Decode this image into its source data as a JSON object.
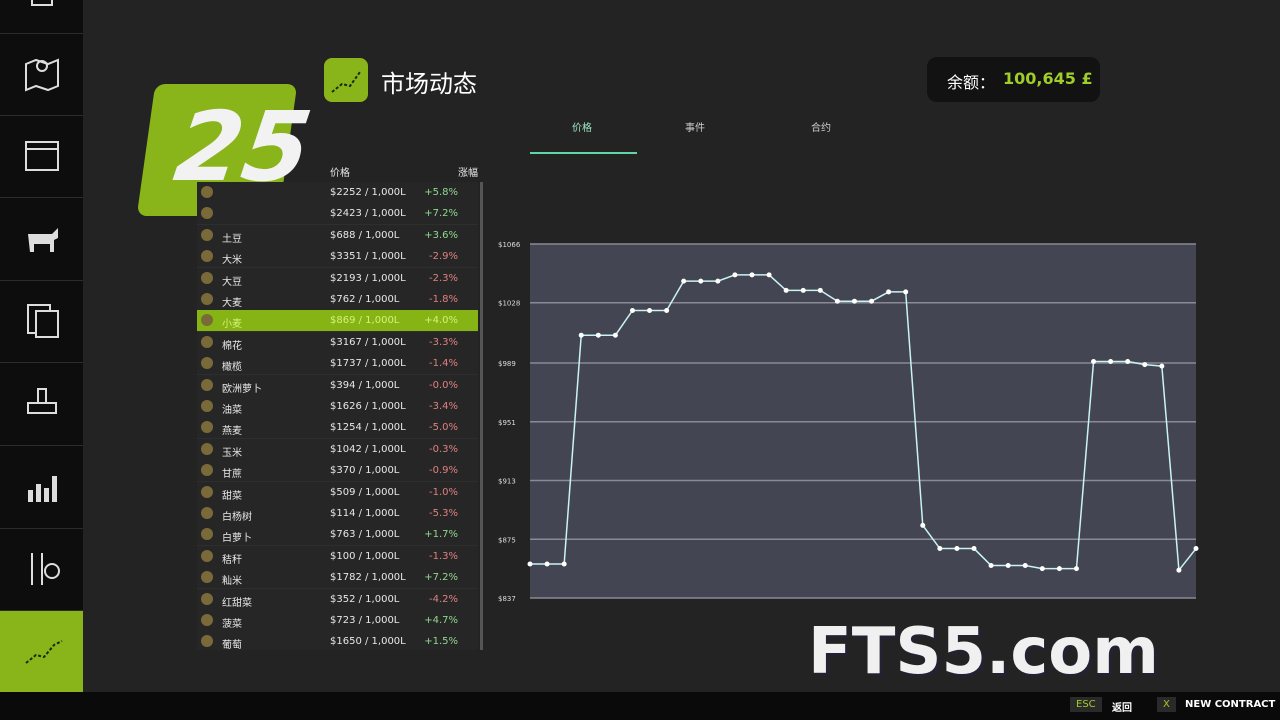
{
  "logo": "25",
  "header": {
    "title": "市场动态"
  },
  "balance": {
    "label": "余额：",
    "value": "100,645 £"
  },
  "tabs": [
    "价格",
    "事件",
    "合约"
  ],
  "list": {
    "headers": [
      "价格",
      "涨幅"
    ],
    "selected": 6,
    "rows": [
      {
        "name": null,
        "price": "$2252 / 1,000L",
        "change": "+5.8%"
      },
      {
        "name": null,
        "price": "$2423 / 1,000L",
        "change": "+7.2%"
      },
      {
        "name": "土豆",
        "price": "$688 / 1,000L",
        "change": "+3.6%"
      },
      {
        "name": "大米",
        "price": "$3351 / 1,000L",
        "change": "-2.9%"
      },
      {
        "name": "大豆",
        "price": "$2193 / 1,000L",
        "change": "-2.3%"
      },
      {
        "name": "大麦",
        "price": "$762 / 1,000L",
        "change": "-1.8%"
      },
      {
        "name": "小麦",
        "price": "$869 / 1,000L",
        "change": "+4.0%"
      },
      {
        "name": "棉花",
        "price": "$3167 / 1,000L",
        "change": "-3.3%"
      },
      {
        "name": "橄榄",
        "price": "$1737 / 1,000L",
        "change": "-1.4%"
      },
      {
        "name": "欧洲萝卜",
        "price": "$394 / 1,000L",
        "change": "-0.0%"
      },
      {
        "name": "油菜",
        "price": "$1626 / 1,000L",
        "change": "-3.4%"
      },
      {
        "name": "燕麦",
        "price": "$1254 / 1,000L",
        "change": "-5.0%"
      },
      {
        "name": "玉米",
        "price": "$1042 / 1,000L",
        "change": "-0.3%"
      },
      {
        "name": "甘蔗",
        "price": "$370 / 1,000L",
        "change": "-0.9%"
      },
      {
        "name": "甜菜",
        "price": "$509 / 1,000L",
        "change": "-1.0%"
      },
      {
        "name": "白杨树",
        "price": "$114 / 1,000L",
        "change": "-5.3%"
      },
      {
        "name": "白萝卜",
        "price": "$763 / 1,000L",
        "change": "+1.7%"
      },
      {
        "name": "秸秆",
        "price": "$100 / 1,000L",
        "change": "-1.3%"
      },
      {
        "name": "籼米",
        "price": "$1782 / 1,000L",
        "change": "+7.2%"
      },
      {
        "name": "红甜菜",
        "price": "$352 / 1,000L",
        "change": "-4.2%"
      },
      {
        "name": "菠菜",
        "price": "$723 / 1,000L",
        "change": "+4.7%"
      },
      {
        "name": "葡萄",
        "price": "$1650 / 1,000L",
        "change": "+1.5%"
      }
    ]
  },
  "chart_data": {
    "type": "line",
    "color": "#c8f4f4",
    "grid": true,
    "values": [
      859,
      859,
      859,
      1007,
      1007,
      1007,
      1023,
      1023,
      1023,
      1042,
      1042,
      1042,
      1046,
      1046,
      1046,
      1036,
      1036,
      1036,
      1029,
      1029,
      1029,
      1035,
      1035,
      884,
      869,
      869,
      869,
      858,
      858,
      858,
      856,
      856,
      856,
      990,
      990,
      990,
      988,
      987,
      855,
      869
    ],
    "ylim": [
      837,
      1066
    ],
    "yticks": [
      {
        "value": 837,
        "label": "$837"
      },
      {
        "value": 875,
        "label": "$875"
      },
      {
        "value": 913,
        "label": "$913"
      },
      {
        "value": 951,
        "label": "$951"
      },
      {
        "value": 989,
        "label": "$989"
      },
      {
        "value": 1028,
        "label": "$1028"
      },
      {
        "value": 1066,
        "label": "$1066"
      }
    ]
  },
  "watermark": "FTS5.com",
  "footer": {
    "keys": [
      {
        "key": "ESC",
        "action": "返回"
      },
      {
        "key": "X",
        "action": "NEW CONTRACT"
      }
    ]
  }
}
